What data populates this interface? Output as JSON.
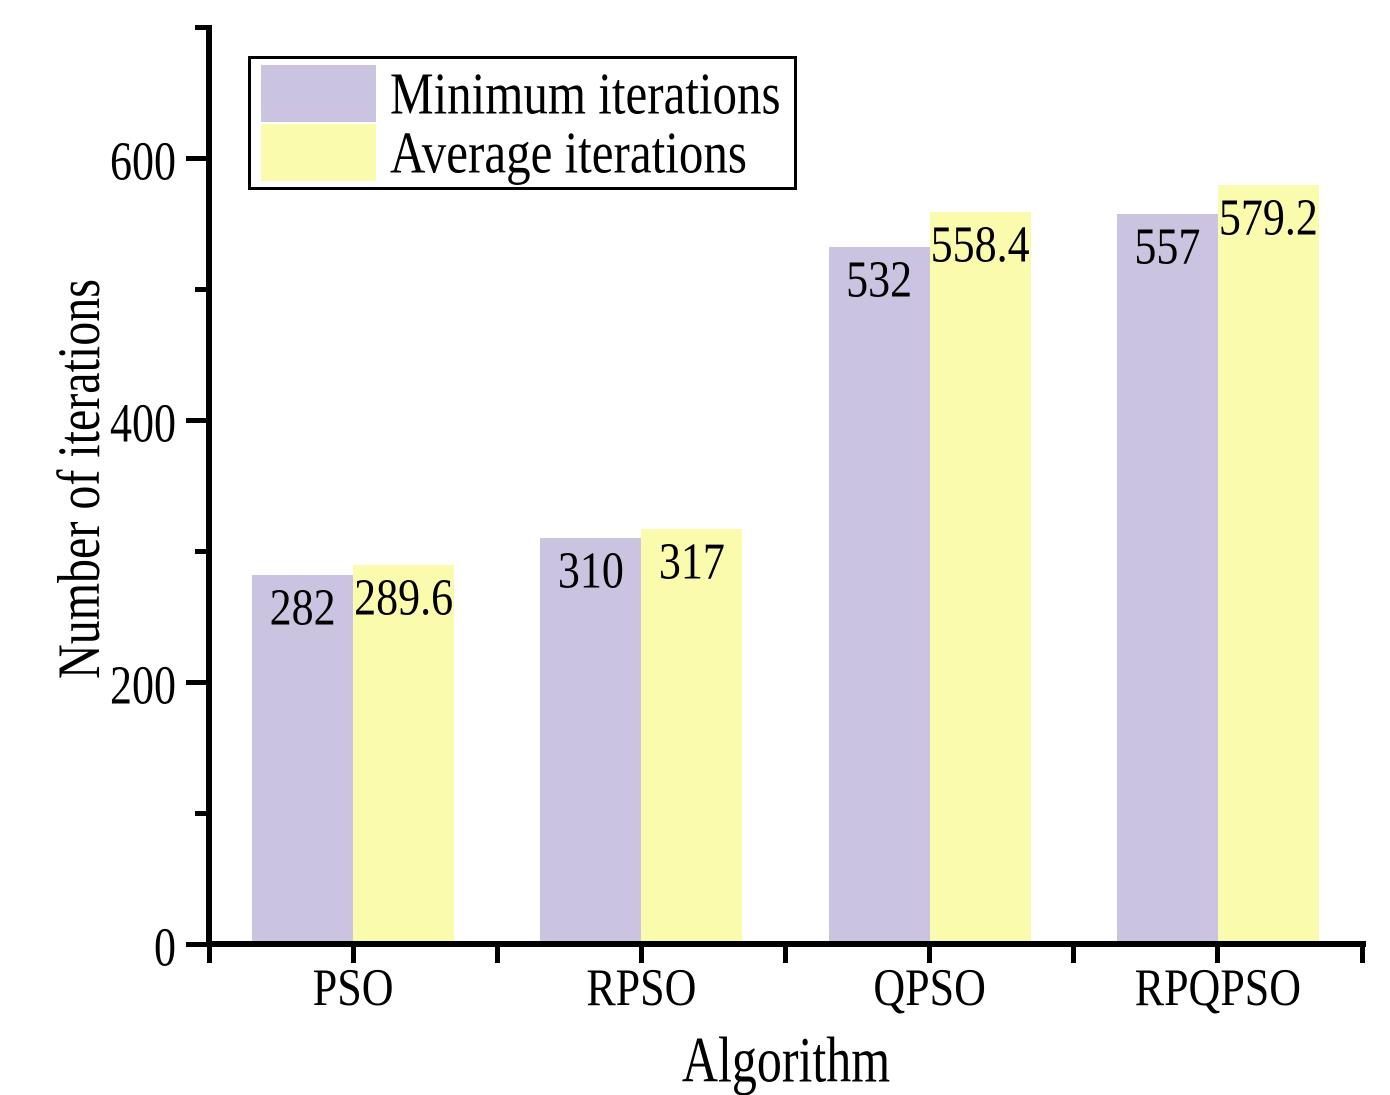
{
  "chart_data": {
    "type": "bar",
    "title": "",
    "xlabel": "Algorithm",
    "ylabel": "Number of iterations",
    "categories": [
      "PSO",
      "RPSO",
      "QPSO",
      "RPQPSO"
    ],
    "series": [
      {
        "name": "Minimum iterations",
        "color": "#CBC4E0",
        "values": [
          282,
          310,
          532,
          557
        ]
      },
      {
        "name": "Average iterations",
        "color": "#FBFBAE",
        "values": [
          289.6,
          317,
          558.4,
          579.2
        ]
      }
    ],
    "ylim": [
      0,
      700
    ],
    "yticks_major": [
      0,
      200,
      400,
      600
    ],
    "yticks_minor": [
      100,
      300,
      500,
      700
    ],
    "bar_value_labels": true,
    "grid": false,
    "legend_position": "top-left",
    "axis_color": "#000000",
    "text_color": "#000000",
    "background_color": "#FFFFFF"
  }
}
